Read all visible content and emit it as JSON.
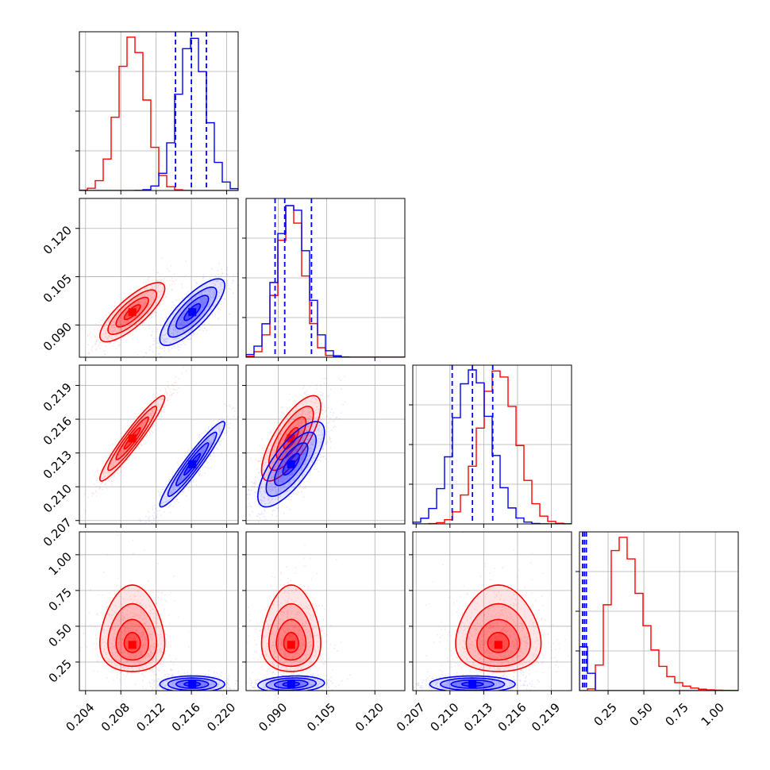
{
  "chart_data": {
    "type": "corner",
    "colors": {
      "model_a": "#ff0000",
      "model_b": "#0000ff"
    },
    "params": [
      {
        "range": [
          0.2033,
          0.2213
        ],
        "ticks": [
          0.204,
          0.208,
          0.212,
          0.216,
          0.22
        ],
        "tick_labels": [
          "0.204",
          "0.208",
          "0.212",
          "0.216",
          "0.220"
        ]
      },
      {
        "range": [
          0.08,
          0.1293
        ],
        "ticks": [
          0.09,
          0.105,
          0.12
        ],
        "tick_labels": [
          "0.090",
          "0.105",
          "0.120"
        ]
      },
      {
        "range": [
          0.2067,
          0.2208
        ],
        "ticks": [
          0.207,
          0.21,
          0.213,
          0.216,
          0.219
        ],
        "tick_labels": [
          "0.207",
          "0.210",
          "0.213",
          "0.216",
          "0.219"
        ]
      },
      {
        "range": [
          0.05,
          1.16
        ],
        "ticks": [
          0.25,
          0.5,
          0.75,
          1.0
        ],
        "tick_labels": [
          "0.25",
          "0.50",
          "0.75",
          "1.00"
        ]
      }
    ],
    "series": [
      {
        "color": "#ff0000",
        "mean": [
          0.2093,
          0.094,
          0.2143,
          0.4
        ],
        "std": [
          0.0016,
          0.004,
          0.00165,
          0.13
        ],
        "corr": [
          [
            1,
            0.8,
            0.95,
            0.0
          ],
          [
            0.8,
            1,
            0.75,
            0.0
          ],
          [
            0.95,
            0.75,
            1,
            0.0
          ],
          [
            0.0,
            0.0,
            0.0,
            1
          ]
        ],
        "quantile_lines": [
          null,
          null,
          null,
          null
        ]
      },
      {
        "color": "#0000ff",
        "mean": [
          0.2161,
          0.094,
          0.212,
          0.095
        ],
        "std": [
          0.0016,
          0.0045,
          0.00165,
          0.025
        ],
        "corr": [
          [
            1,
            0.8,
            0.95,
            0.0
          ],
          [
            0.8,
            1,
            0.75,
            0.15
          ],
          [
            0.95,
            0.75,
            1,
            0.0
          ],
          [
            0.0,
            0.15,
            0.0,
            1
          ]
        ],
        "quantile_lines": [
          [
            0.2142,
            0.216,
            0.2177
          ],
          [
            0.089,
            0.092,
            0.1003
          ],
          [
            0.2102,
            0.212,
            0.2138
          ],
          [
            0.072,
            0.085,
            0.098
          ]
        ]
      }
    ],
    "contour_levels_sigma": [
      0.5,
      1.0,
      1.5,
      2.0
    ],
    "grid": true,
    "xlabels": [
      "",
      "",
      "",
      ""
    ],
    "ylabels": [
      "",
      "",
      "",
      ""
    ]
  }
}
